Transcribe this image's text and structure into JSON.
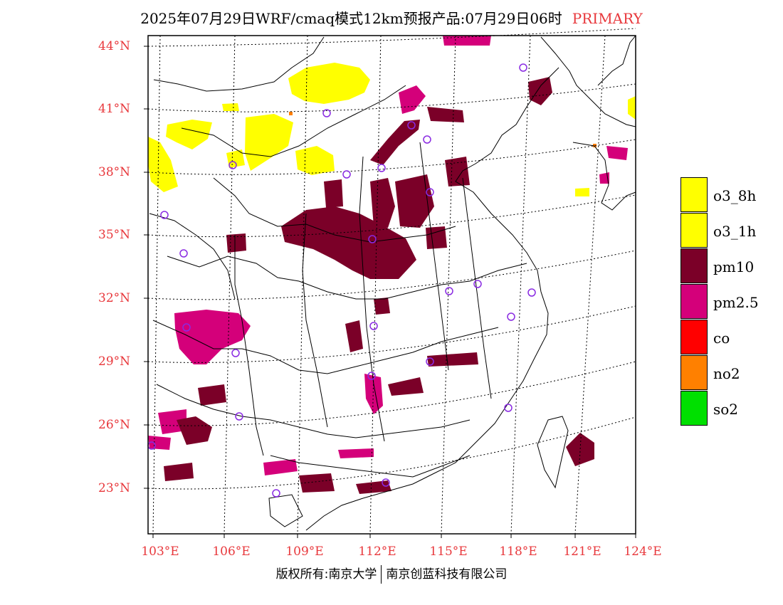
{
  "title": {
    "text": "2025年07月29日WRF/cmaq模式12km预报产品:07月29日06时",
    "tag": "PRIMARY"
  },
  "lat_labels": [
    "44°N",
    "41°N",
    "38°N",
    "35°N",
    "32°N",
    "29°N",
    "26°N",
    "23°N"
  ],
  "lon_labels": [
    "103°E",
    "106°E",
    "109°E",
    "112°E",
    "115°E",
    "118°E",
    "121°E",
    "124°E"
  ],
  "legend": [
    {
      "label": "o3_8h",
      "color": "#ffff00"
    },
    {
      "label": "o3_1h",
      "color": "#ffff00"
    },
    {
      "label": "pm10",
      "color": "#7b0028"
    },
    {
      "label": "pm2.5",
      "color": "#d4007a"
    },
    {
      "label": "co",
      "color": "#ff0000"
    },
    {
      "label": "no2",
      "color": "#ff8000"
    },
    {
      "label": "so2",
      "color": "#00e000"
    }
  ],
  "footer": {
    "left": "版权所有:南京大学",
    "right": "南京创蓝科技有限公司"
  },
  "colors": {
    "o3": "#ffff00",
    "pm10": "#7b0028",
    "pm25": "#d4007a",
    "no2": "#ff8000",
    "station": "#8a2be2",
    "label": "#e8383c"
  }
}
